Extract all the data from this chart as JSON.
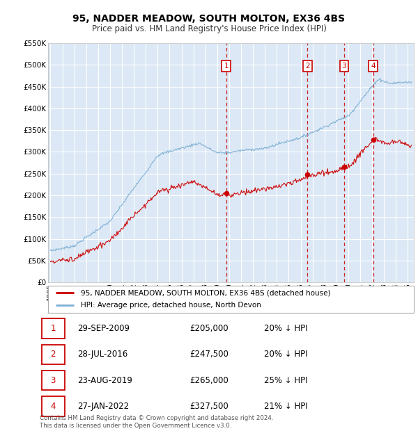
{
  "title": "95, NADDER MEADOW, SOUTH MOLTON, EX36 4BS",
  "subtitle": "Price paid vs. HM Land Registry's House Price Index (HPI)",
  "legend_line1": "95, NADDER MEADOW, SOUTH MOLTON, EX36 4BS (detached house)",
  "legend_line2": "HPI: Average price, detached house, North Devon",
  "footer1": "Contains HM Land Registry data © Crown copyright and database right 2024.",
  "footer2": "This data is licensed under the Open Government Licence v3.0.",
  "transactions": [
    {
      "num": 1,
      "date": "29-SEP-2009",
      "price": "£205,000",
      "pct": "20%",
      "year": 2009.75
    },
    {
      "num": 2,
      "date": "28-JUL-2016",
      "price": "£247,500",
      "pct": "20%",
      "year": 2016.57
    },
    {
      "num": 3,
      "date": "23-AUG-2019",
      "price": "£265,000",
      "pct": "25%",
      "year": 2019.65
    },
    {
      "num": 4,
      "date": "27-JAN-2022",
      "price": "£327,500",
      "pct": "21%",
      "year": 2022.08
    }
  ],
  "transaction_prices": [
    205000,
    247500,
    265000,
    327500
  ],
  "ylim": [
    0,
    550000
  ],
  "yticks": [
    0,
    50000,
    100000,
    150000,
    200000,
    250000,
    300000,
    350000,
    400000,
    450000,
    500000,
    550000
  ],
  "ytick_labels": [
    "£0",
    "£50K",
    "£100K",
    "£150K",
    "£200K",
    "£250K",
    "£300K",
    "£350K",
    "£400K",
    "£450K",
    "£500K",
    "£550K"
  ],
  "xlim_start": 1994.8,
  "xlim_end": 2025.5,
  "red_color": "#cc0000",
  "blue_color": "#7bafd4",
  "plot_bg": "#dce8f5",
  "grid_color": "#ffffff",
  "title_fontsize": 10,
  "subtitle_fontsize": 8.5
}
